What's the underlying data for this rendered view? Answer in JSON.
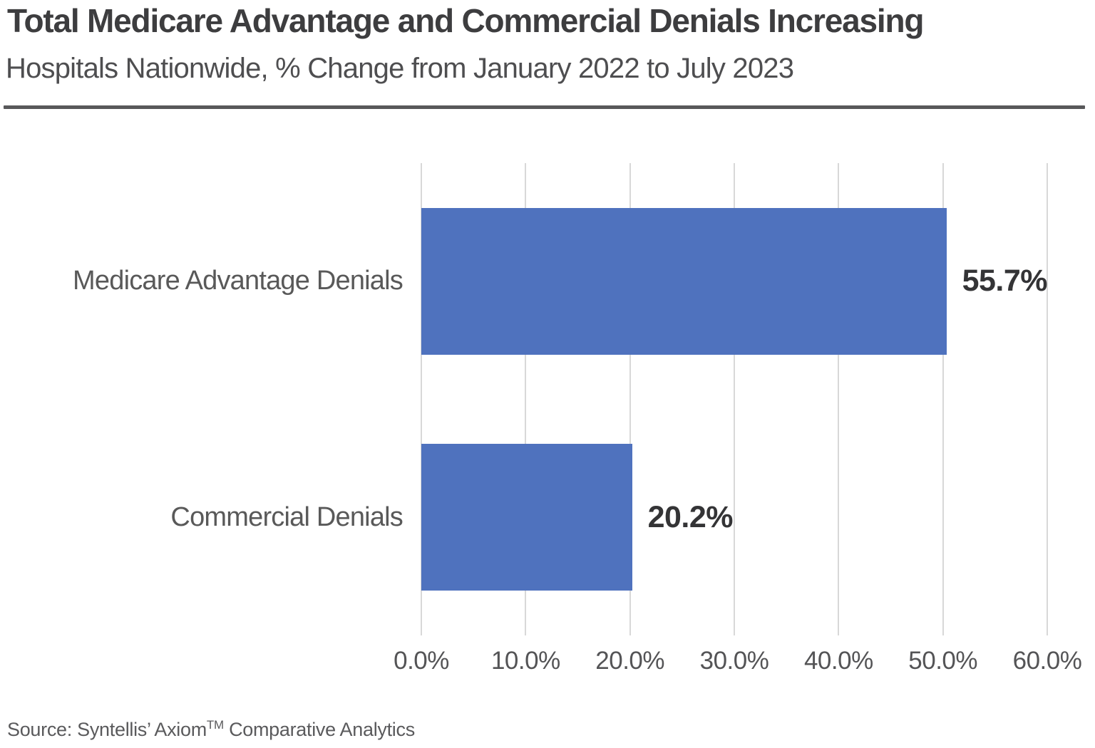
{
  "header": {
    "title": "Total Medicare Advantage and Commercial Denials Increasing",
    "subtitle": "Hospitals Nationwide, % Change from January 2022 to July 2023"
  },
  "chart_data": {
    "type": "bar",
    "orientation": "horizontal",
    "title": "Total Medicare Advantage and Commercial Denials Increasing",
    "subtitle": "Hospitals Nationwide, % Change from January 2022 to July 2023",
    "categories": [
      "Medicare Advantage Denials",
      "Commercial Denials"
    ],
    "values": [
      55.7,
      20.2
    ],
    "value_labels": [
      "55.7%",
      "20.2%"
    ],
    "xlabel": "",
    "ylabel": "",
    "axis": {
      "xlim": [
        0,
        60
      ],
      "tick_step": 10,
      "tick_labels": [
        "0.0%",
        "10.0%",
        "20.0%",
        "30.0%",
        "40.0%",
        "50.0%",
        "60.0%"
      ]
    },
    "grid": true,
    "legend": false,
    "colors": {
      "bar": "#4f72be",
      "gridline": "#d8d8d8",
      "value_label": "#343436",
      "category_label": "#595959",
      "tick_label": "#545456",
      "title": "#3d3d3f",
      "divider": "#58585a"
    }
  },
  "footer": {
    "source_prefix": "Source: Syntellis’ Axiom",
    "source_tm": "TM",
    "source_suffix": " Comparative Analytics"
  }
}
